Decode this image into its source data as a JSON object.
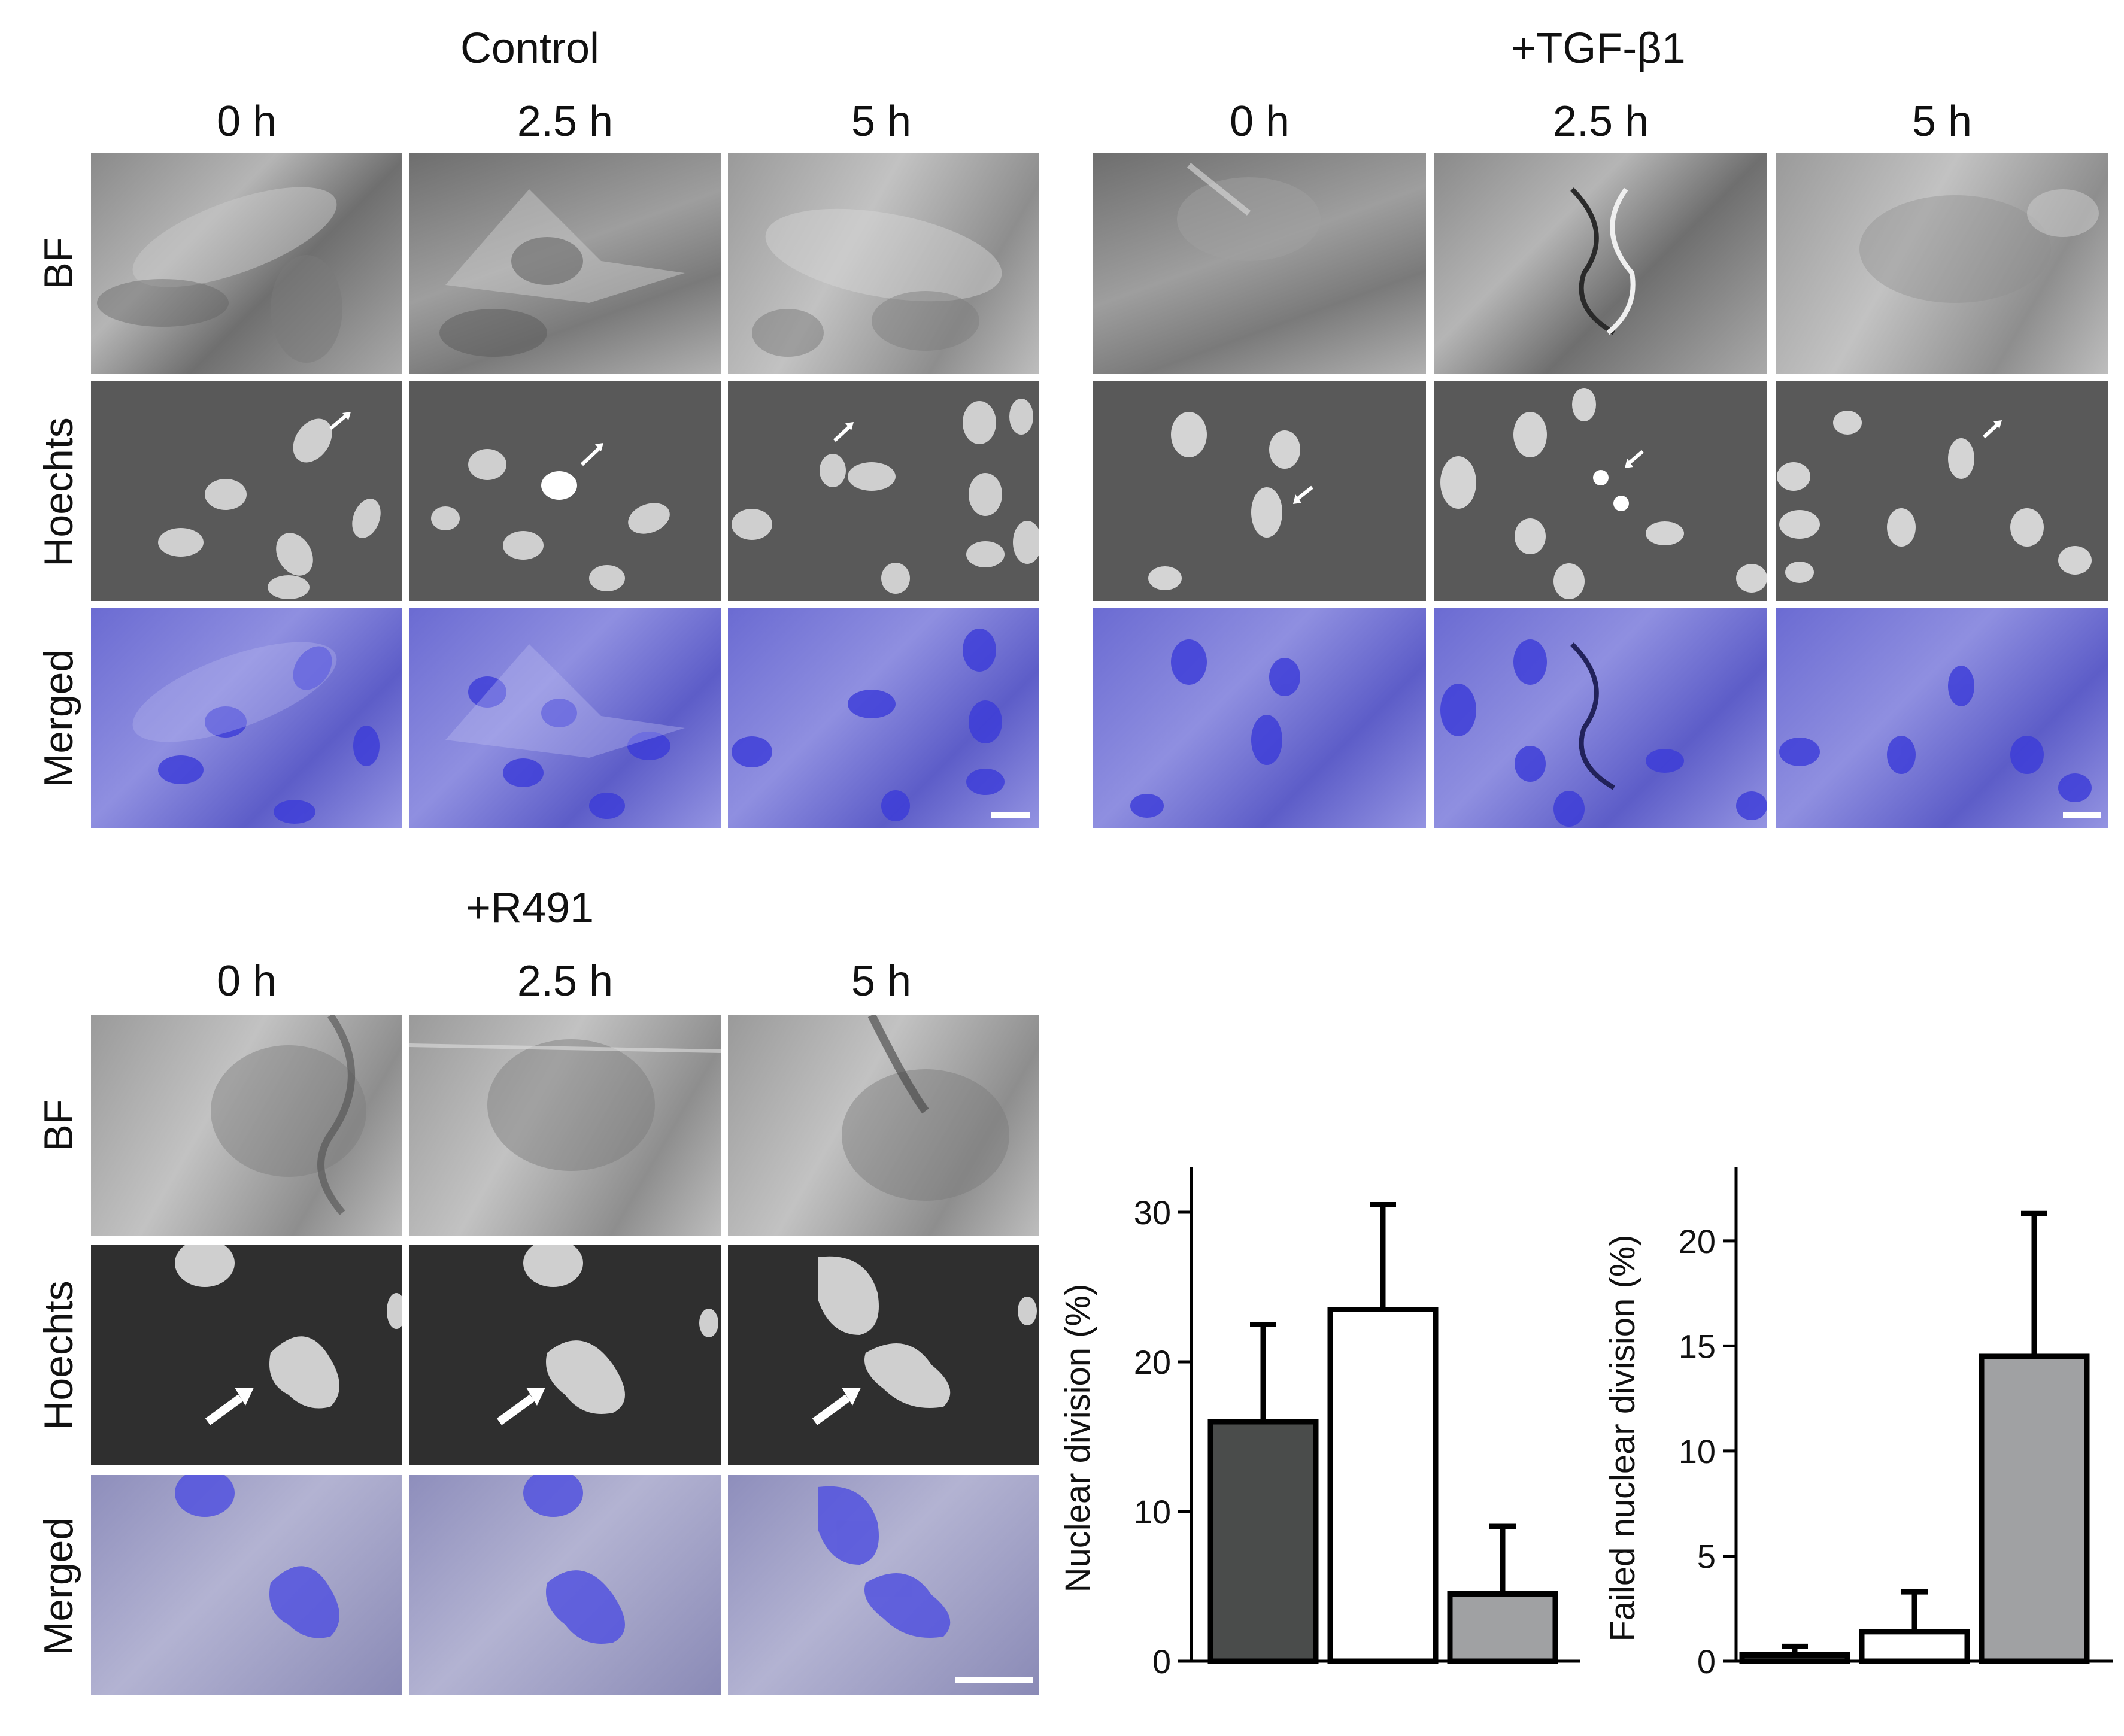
{
  "panels": {
    "control": {
      "title": "Control",
      "times": [
        "0 h",
        "2.5 h",
        "5 h"
      ],
      "rows": [
        "BF",
        "Hoechts",
        "Merged"
      ]
    },
    "tgf": {
      "title": "+TGF-β1",
      "times": [
        "0 h",
        "2.5 h",
        "5 h"
      ]
    },
    "r491": {
      "title": "+R491",
      "times": [
        "0 h",
        "2.5 h",
        "5 h"
      ],
      "rows": [
        "BF",
        "Hoechts",
        "Merged"
      ]
    }
  },
  "chart_data": [
    {
      "type": "bar",
      "ylabel": "Nuclear division (%)",
      "ylim": [
        0,
        33
      ],
      "yticks": [
        0,
        10,
        20,
        30
      ],
      "values": [
        16.0,
        23.5,
        4.5
      ],
      "errors": [
        6.5,
        7.0,
        4.5
      ],
      "fills": [
        "#4a4c4b",
        "#ffffff",
        "#a0a1a3"
      ]
    },
    {
      "type": "bar",
      "ylabel": "Failed nuclear division (%)",
      "ylim": [
        0,
        23.5
      ],
      "yticks": [
        0,
        5,
        10,
        15,
        20
      ],
      "values": [
        0.3,
        1.4,
        14.5
      ],
      "errors": [
        0.4,
        1.9,
        6.8
      ],
      "fills": [
        "#4a4c4b",
        "#ffffff",
        "#a0a1a3"
      ]
    }
  ],
  "colors": {
    "bar_stroke": "#000000",
    "merged_tint": "#5a5ad0"
  }
}
